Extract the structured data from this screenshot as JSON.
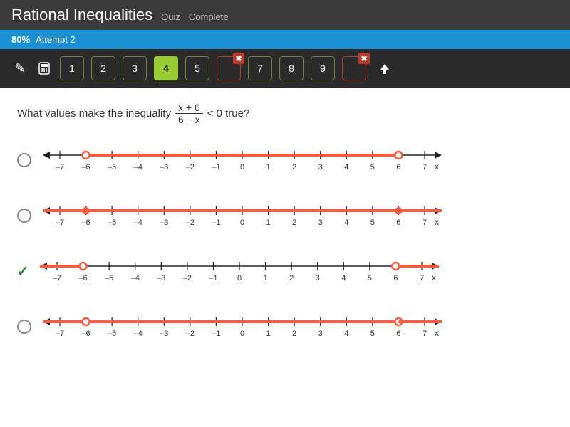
{
  "header": {
    "title": "Rational Inequalities",
    "subtitle": "Quiz",
    "status": "Complete"
  },
  "progress": {
    "percent": "80%",
    "attempt_label": "Attempt 2"
  },
  "nav": {
    "items": [
      {
        "label": "1",
        "wrong": false,
        "current": false
      },
      {
        "label": "2",
        "wrong": false,
        "current": false
      },
      {
        "label": "3",
        "wrong": false,
        "current": false
      },
      {
        "label": "4",
        "wrong": false,
        "current": true
      },
      {
        "label": "5",
        "wrong": false,
        "current": false
      },
      {
        "label": "",
        "wrong": true,
        "current": false,
        "gap": true
      },
      {
        "label": "7",
        "wrong": false,
        "current": false
      },
      {
        "label": "8",
        "wrong": false,
        "current": false
      },
      {
        "label": "9",
        "wrong": false,
        "current": false
      },
      {
        "label": "",
        "wrong": true,
        "current": false,
        "gap": true
      }
    ]
  },
  "question": {
    "prefix": "What values make the inequality",
    "frac_num": "x + 6",
    "frac_den": "6 − x",
    "suffix": "< 0 true?"
  },
  "numberline": {
    "ticks": [
      -7,
      -6,
      -5,
      -4,
      -3,
      -2,
      -1,
      0,
      1,
      2,
      3,
      4,
      5,
      6,
      7
    ],
    "x_label": "x",
    "range_min": -7,
    "range_max": 7,
    "axis_color": "#222",
    "highlight_color": "#ff5a3c",
    "open_circle_stroke": "#ff5a3c",
    "open_circle_fill": "#ffffff"
  },
  "options": [
    {
      "selected": false,
      "correct": false,
      "segments": [
        {
          "from": -6,
          "to": 6,
          "left_open": true,
          "right_open": true,
          "left_arrow": false,
          "right_arrow": false
        }
      ]
    },
    {
      "selected": false,
      "correct": false,
      "segments": [
        {
          "from": -7.8,
          "to": -6,
          "left_open": false,
          "right_open": false,
          "left_arrow": true,
          "right_arrow": false
        },
        {
          "from": -6,
          "to": 6,
          "left_open": false,
          "right_open": false,
          "left_arrow": false,
          "right_arrow": false
        },
        {
          "from": 6,
          "to": 7.8,
          "left_open": false,
          "right_open": false,
          "left_arrow": false,
          "right_arrow": true
        }
      ],
      "closed_points": [
        -6,
        6
      ]
    },
    {
      "selected": true,
      "correct": true,
      "segments": [
        {
          "from": -7.8,
          "to": -6,
          "left_open": false,
          "right_open": true,
          "left_arrow": true,
          "right_arrow": false
        },
        {
          "from": 6,
          "to": 7.8,
          "left_open": true,
          "right_open": false,
          "left_arrow": false,
          "right_arrow": true
        }
      ]
    },
    {
      "selected": false,
      "correct": false,
      "segments": [
        {
          "from": -7.8,
          "to": -6,
          "left_open": false,
          "right_open": false,
          "left_arrow": true,
          "right_arrow": false
        },
        {
          "from": -6,
          "to": 6,
          "left_open": true,
          "right_open": true,
          "left_arrow": false,
          "right_arrow": false
        },
        {
          "from": 6,
          "to": 7.8,
          "left_open": false,
          "right_open": false,
          "left_arrow": false,
          "right_arrow": true
        }
      ]
    }
  ]
}
